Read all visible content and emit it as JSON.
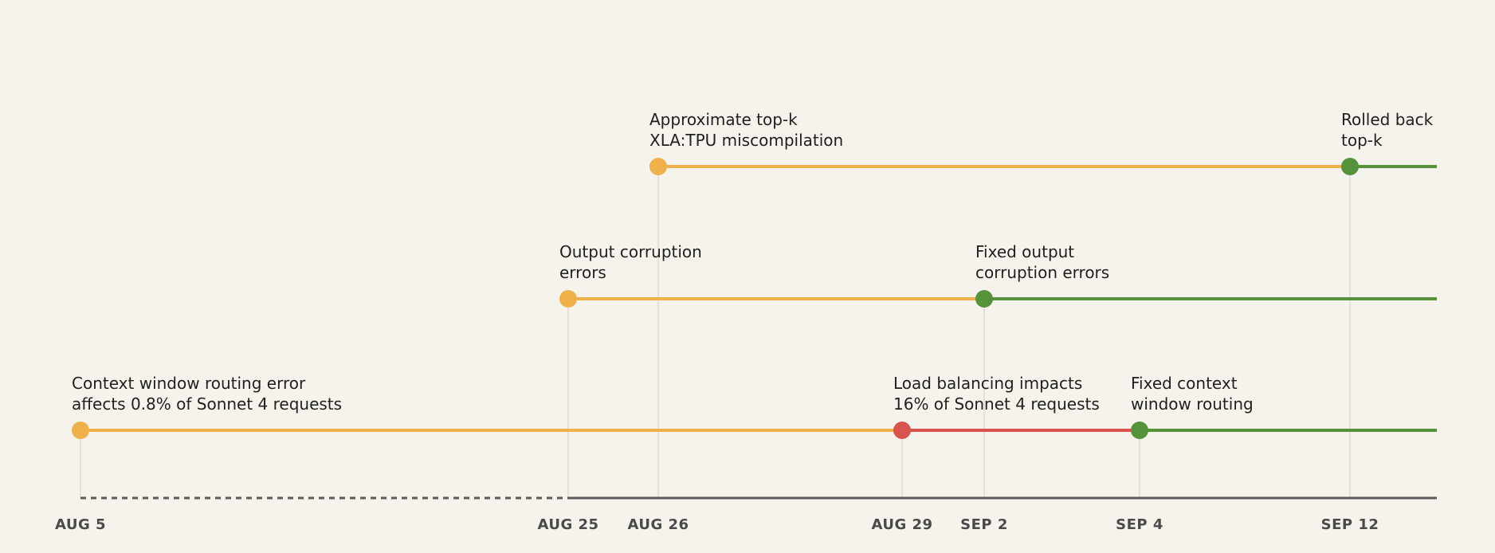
{
  "colors": {
    "background": "#f5f3ec",
    "degraded": "#f0b04c",
    "severe": "#d9534f",
    "fixed": "#55923a",
    "axis": "#5a5a5a",
    "guide": "#e3e1da",
    "text": "#1f1f1f",
    "date_text": "#4a4a4a"
  },
  "dates": [
    {
      "id": "aug5",
      "label": "AUG 5"
    },
    {
      "id": "aug25",
      "label": "AUG 25"
    },
    {
      "id": "aug26",
      "label": "AUG 26"
    },
    {
      "id": "aug29",
      "label": "AUG 29"
    },
    {
      "id": "sep2",
      "label": "SEP 2"
    },
    {
      "id": "sep4",
      "label": "SEP 4"
    },
    {
      "id": "sep12",
      "label": "SEP 12"
    }
  ],
  "tracks": [
    {
      "name": "approximate-top-k",
      "events": [
        {
          "date": "aug26",
          "status": "degraded",
          "lines": [
            "Approximate top-k",
            "XLA:TPU miscompilation"
          ]
        },
        {
          "date": "sep12",
          "status": "fixed",
          "lines": [
            "Rolled back",
            "top-k"
          ]
        }
      ]
    },
    {
      "name": "output-corruption",
      "events": [
        {
          "date": "aug25",
          "status": "degraded",
          "lines": [
            "Output corruption",
            "errors"
          ]
        },
        {
          "date": "sep2",
          "status": "fixed",
          "lines": [
            "Fixed output",
            "corruption errors"
          ]
        }
      ]
    },
    {
      "name": "context-window-routing",
      "events": [
        {
          "date": "aug5",
          "status": "degraded",
          "lines": [
            "Context window routing error",
            "affects 0.8% of Sonnet 4 requests"
          ]
        },
        {
          "date": "aug29",
          "status": "severe",
          "lines": [
            "Load balancing impacts",
            "16% of Sonnet 4 requests"
          ]
        },
        {
          "date": "sep4",
          "status": "fixed",
          "lines": [
            "Fixed context",
            "window routing"
          ]
        }
      ]
    }
  ]
}
